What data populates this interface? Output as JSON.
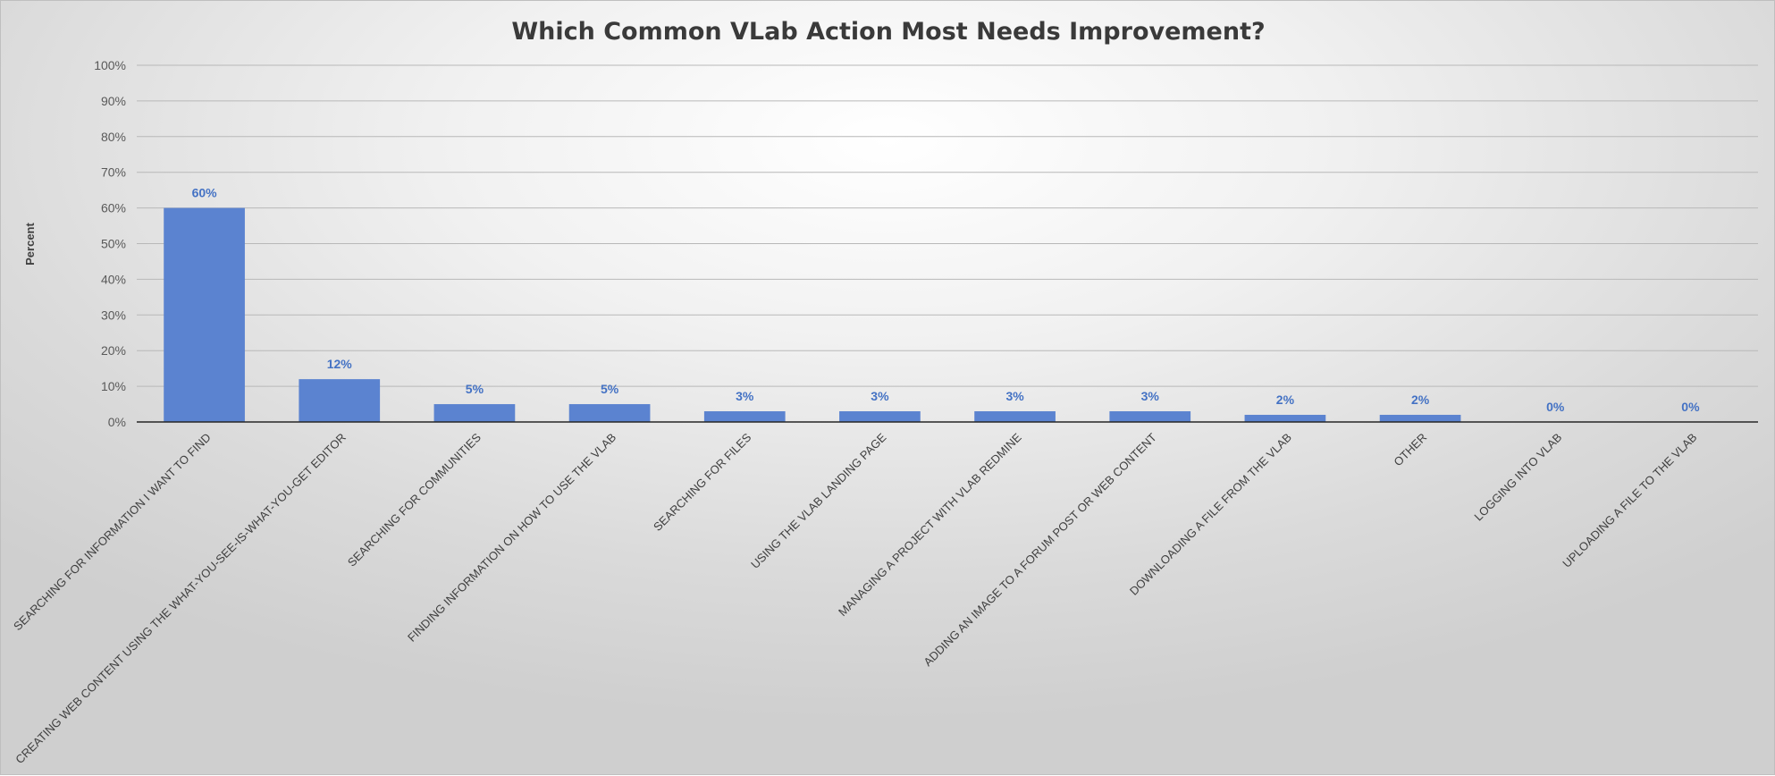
{
  "chart_data": {
    "type": "bar",
    "title": "Which Common VLab Action Most Needs Improvement?",
    "xlabel": "",
    "ylabel": "Percent",
    "ylim": [
      0,
      100
    ],
    "y_ticks": [
      "0%",
      "10%",
      "20%",
      "30%",
      "40%",
      "50%",
      "60%",
      "70%",
      "80%",
      "90%",
      "100%"
    ],
    "grid": true,
    "legend": "none",
    "bar_color": "#5b83d0",
    "label_color": "#4472c4",
    "categories": [
      "SEARCHING FOR INFORMATION I WANT TO FIND",
      "CREATING WEB CONTENT USING THE WHAT-YOU-SEE-IS-WHAT-YOU-GET EDITOR",
      "SEARCHING FOR COMMUNITIES",
      "FINDING INFORMATION ON HOW TO USE THE VLAB",
      "SEARCHING FOR FILES",
      "USING THE VLAB LANDING PAGE",
      "MANAGING A PROJECT WITH VLAB REDMINE",
      "ADDING AN IMAGE TO A FORUM POST OR WEB CONTENT",
      "DOWNLOADING A FILE FROM THE VLAB",
      "OTHER",
      "LOGGING INTO VLAB",
      "UPLOADING A FILE TO THE VLAB"
    ],
    "values": [
      60,
      12,
      5,
      5,
      3,
      3,
      3,
      3,
      2,
      2,
      0,
      0
    ],
    "data_labels": [
      "60%",
      "12%",
      "5%",
      "5%",
      "3%",
      "3%",
      "3%",
      "3%",
      "2%",
      "2%",
      "0%",
      "0%"
    ]
  }
}
